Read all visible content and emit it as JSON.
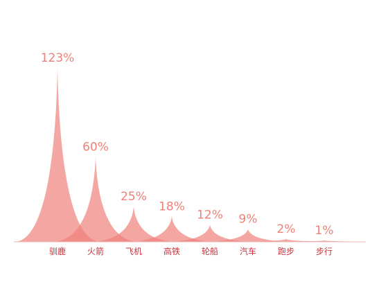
{
  "chart_data": {
    "type": "area",
    "categories": [
      "驯鹿",
      "火箭",
      "飞机",
      "高铁",
      "轮船",
      "汽车",
      "跑步",
      "步行"
    ],
    "values": [
      123,
      60,
      25,
      18,
      12,
      9,
      2,
      1
    ],
    "value_labels": [
      "123%",
      "60%",
      "25%",
      "18%",
      "12%",
      "9%",
      "2%",
      "1%"
    ],
    "title": "",
    "xlabel": "",
    "ylabel": "",
    "ylim": [
      0,
      123
    ],
    "grid": false,
    "legend": "none"
  },
  "colors": {
    "fill": "#ee807a",
    "value_text": "#ef7f78",
    "category_text": "#c8323b",
    "axis": "#e6b7b3"
  }
}
